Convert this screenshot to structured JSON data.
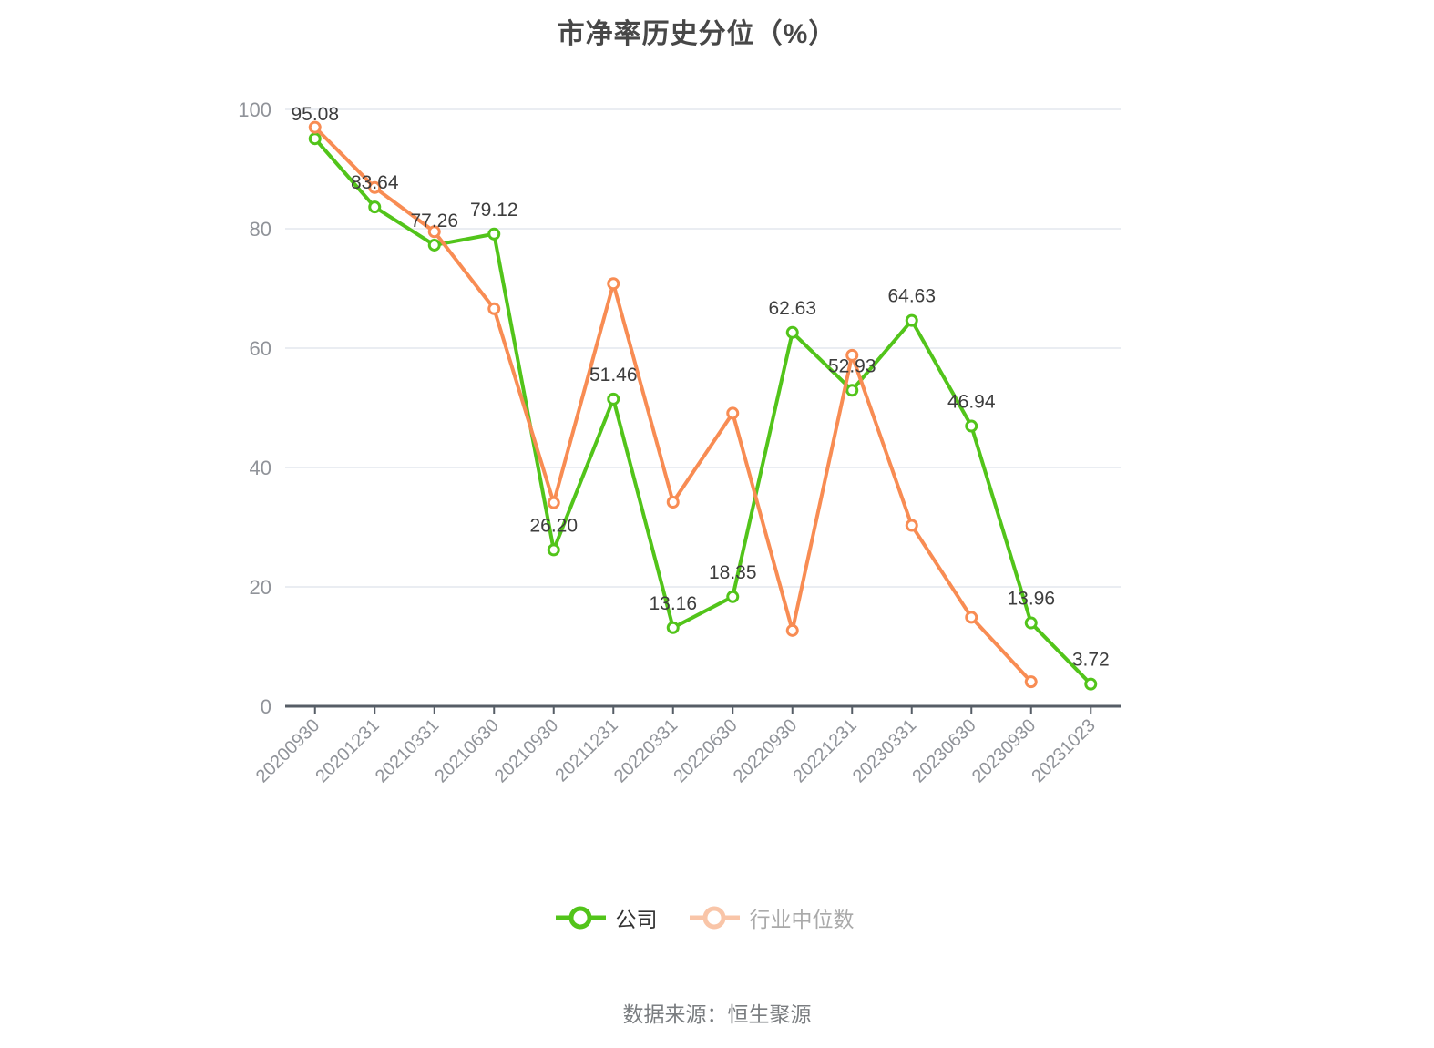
{
  "title": "市净率历史分位（%）",
  "source_text": "数据来源：恒生聚源",
  "legend": {
    "items": [
      {
        "label": "公司",
        "marker_color": "#52c41a",
        "label_color": "#333333"
      },
      {
        "label": "行业中位数",
        "marker_color": "#f9c5a8",
        "label_color": "#aaaaaa"
      }
    ]
  },
  "colors": {
    "company_line": "#52c41a",
    "industry_line": "#f88c53",
    "value_label": "#3d3d3d",
    "axis_line": "#565d66",
    "tick_label": "#909399",
    "grid_line": "#e4e7ed",
    "title": "#474747",
    "point_fill": "#ffffff"
  },
  "chart_data": {
    "type": "line",
    "title": "市净率历史分位（%）",
    "xlabel": "",
    "ylabel": "",
    "ylim": [
      0,
      100
    ],
    "yticks": [
      0,
      20,
      40,
      60,
      80,
      100
    ],
    "grid": true,
    "legend_position": "bottom",
    "x_label_rotation": -45,
    "categories": [
      "20200930",
      "20201231",
      "20210331",
      "20210630",
      "20210930",
      "20211231",
      "20220331",
      "20220630",
      "20220930",
      "20221231",
      "20230331",
      "20230630",
      "20230930",
      "20231023"
    ],
    "series": [
      {
        "name": "公司",
        "color": "#52c41a",
        "show_value_labels": true,
        "values": [
          95.08,
          83.64,
          77.26,
          79.12,
          26.2,
          51.46,
          13.16,
          18.35,
          62.63,
          52.93,
          64.63,
          46.94,
          13.96,
          3.72
        ]
      },
      {
        "name": "行业中位数",
        "color": "#f88c53",
        "show_value_labels": false,
        "values_estimated": true,
        "values": [
          97.0,
          86.9,
          79.5,
          66.6,
          34.1,
          70.8,
          34.2,
          49.1,
          12.7,
          58.8,
          30.3,
          14.9,
          4.1,
          null
        ]
      }
    ]
  }
}
